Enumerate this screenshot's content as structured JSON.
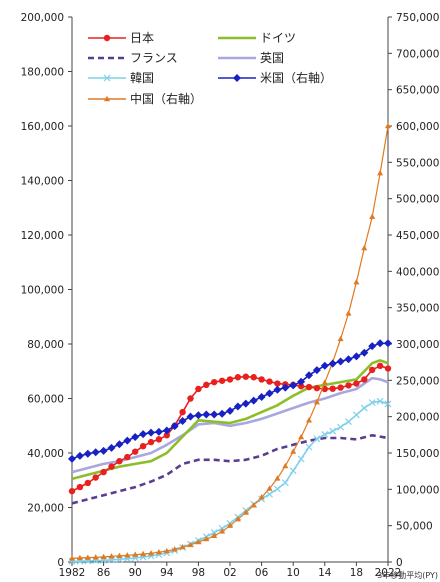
{
  "chart_data": {
    "type": "line",
    "note": "3年移動平均(PY)",
    "x_ticks": [
      "1982",
      "86",
      "90",
      "94",
      "98",
      "02",
      "06",
      "10",
      "14",
      "18",
      "2022"
    ],
    "x_range": [
      1982,
      2022
    ],
    "y_left": {
      "range": [
        0,
        200000
      ],
      "step": 20000,
      "ticks": [
        "0",
        "20,000",
        "40,000",
        "60,000",
        "80,000",
        "100,000",
        "120,000",
        "140,000",
        "160,000",
        "180,000",
        "200,000"
      ]
    },
    "y_right": {
      "range": [
        0,
        750000
      ],
      "step": 50000,
      "ticks": [
        "0",
        "50,000",
        "100,000",
        "150,000",
        "200,000",
        "250,000",
        "300,000",
        "350,000",
        "400,000",
        "450,000",
        "500,000",
        "550,000",
        "600,000",
        "650,000",
        "700,000",
        "750,000"
      ]
    },
    "legend_placement": "top-left",
    "grid": false,
    "series": [
      {
        "name": "日本",
        "color": "#e8201e",
        "marker": "circle",
        "axis": "left",
        "x": [
          1982,
          1983,
          1984,
          1985,
          1986,
          1987,
          1988,
          1989,
          1990,
          1991,
          1992,
          1993,
          1994,
          1995,
          1996,
          1997,
          1998,
          1999,
          2000,
          2001,
          2002,
          2003,
          2004,
          2005,
          2006,
          2007,
          2008,
          2009,
          2010,
          2011,
          2012,
          2013,
          2014,
          2015,
          2016,
          2017,
          2018,
          2019,
          2020,
          2021,
          2022
        ],
        "y": [
          26000,
          27500,
          29000,
          31000,
          33000,
          35000,
          37000,
          38500,
          40500,
          42500,
          44000,
          45000,
          46500,
          50000,
          55000,
          60000,
          63500,
          65000,
          66000,
          66500,
          67000,
          67800,
          68000,
          67800,
          67000,
          66200,
          65500,
          65200,
          65000,
          64500,
          64200,
          63800,
          63500,
          63600,
          64000,
          64800,
          65500,
          67000,
          70500,
          72000,
          71000
        ]
      },
      {
        "name": "ドイツ",
        "color": "#8cbe2a",
        "marker": "none",
        "axis": "left",
        "x": [
          1982,
          1984,
          1986,
          1988,
          1990,
          1992,
          1994,
          1996,
          1998,
          2000,
          2002,
          2004,
          2006,
          2008,
          2010,
          2012,
          2014,
          2016,
          2018,
          2020,
          2021,
          2022
        ],
        "y": [
          30500,
          32000,
          33500,
          35000,
          36000,
          37000,
          40000,
          46000,
          52000,
          51500,
          51000,
          52500,
          55000,
          57500,
          61000,
          64000,
          65000,
          66000,
          67000,
          73000,
          74000,
          73000
        ]
      },
      {
        "name": "フランス",
        "color": "#5b3d90",
        "marker": "none",
        "dashed": true,
        "axis": "left",
        "x": [
          1982,
          1984,
          1986,
          1988,
          1990,
          1992,
          1994,
          1996,
          1998,
          2000,
          2002,
          2004,
          2006,
          2008,
          2010,
          2012,
          2014,
          2016,
          2018,
          2020,
          2021,
          2022
        ],
        "y": [
          21500,
          23000,
          24500,
          26000,
          27500,
          29500,
          32000,
          36000,
          37500,
          37500,
          37000,
          37500,
          39000,
          41500,
          43000,
          44500,
          45500,
          45500,
          45000,
          46500,
          46000,
          45500
        ]
      },
      {
        "name": "英国",
        "color": "#a9a7de",
        "marker": "none",
        "axis": "left",
        "x": [
          1982,
          1984,
          1986,
          1988,
          1990,
          1992,
          1994,
          1996,
          1998,
          2000,
          2002,
          2004,
          2006,
          2008,
          2010,
          2012,
          2014,
          2016,
          2018,
          2020,
          2021,
          2022
        ],
        "y": [
          33000,
          34500,
          36000,
          37000,
          38500,
          40000,
          43000,
          46500,
          50500,
          51000,
          50000,
          51000,
          52500,
          54500,
          56500,
          58500,
          60000,
          62000,
          63500,
          67500,
          67000,
          66000
        ]
      },
      {
        "name": "韓国",
        "color": "#7fd0ea",
        "marker": "cross",
        "axis": "left",
        "x": [
          1982,
          1983,
          1984,
          1985,
          1986,
          1987,
          1988,
          1989,
          1990,
          1991,
          1992,
          1993,
          1994,
          1995,
          1996,
          1997,
          1998,
          1999,
          2000,
          2001,
          2002,
          2003,
          2004,
          2005,
          2006,
          2007,
          2008,
          2009,
          2010,
          2011,
          2012,
          2013,
          2014,
          2015,
          2016,
          2017,
          2018,
          2019,
          2020,
          2021,
          2022
        ],
        "y": [
          200,
          300,
          400,
          500,
          600,
          800,
          1000,
          1200,
          1500,
          1800,
          2200,
          2700,
          3300,
          4200,
          5300,
          6600,
          7900,
          9300,
          10800,
          12300,
          14200,
          16500,
          18900,
          21200,
          23100,
          24900,
          26800,
          29100,
          33500,
          37800,
          42200,
          45200,
          46800,
          48000,
          49500,
          51500,
          54000,
          56500,
          58500,
          59000,
          58000
        ]
      },
      {
        "name": "米国（右軸）",
        "color": "#1822c4",
        "marker": "diamond",
        "axis": "right",
        "x": [
          1982,
          1983,
          1984,
          1985,
          1986,
          1987,
          1988,
          1989,
          1990,
          1991,
          1992,
          1993,
          1994,
          1995,
          1996,
          1997,
          1998,
          1999,
          2000,
          2001,
          2002,
          2003,
          2004,
          2005,
          2006,
          2007,
          2008,
          2009,
          2010,
          2011,
          2012,
          2013,
          2014,
          2015,
          2016,
          2017,
          2018,
          2019,
          2020,
          2021,
          2022
        ],
        "y": [
          142000,
          146000,
          149000,
          151000,
          153000,
          157000,
          162000,
          167000,
          172000,
          176000,
          178000,
          179000,
          181000,
          187000,
          194000,
          200000,
          202000,
          203000,
          203000,
          204000,
          208000,
          214000,
          218000,
          222000,
          227000,
          232000,
          237000,
          240000,
          243000,
          248000,
          257000,
          264000,
          270000,
          273000,
          276000,
          279000,
          283000,
          288000,
          297000,
          301000,
          301000
        ]
      },
      {
        "name": "中国（右軸）",
        "color": "#e07a22",
        "marker": "triangle",
        "axis": "right",
        "x": [
          1982,
          1983,
          1984,
          1985,
          1986,
          1987,
          1988,
          1989,
          1990,
          1991,
          1992,
          1993,
          1994,
          1995,
          1996,
          1997,
          1998,
          1999,
          2000,
          2001,
          2002,
          2003,
          2004,
          2005,
          2006,
          2007,
          2008,
          2009,
          2010,
          2011,
          2012,
          2013,
          2014,
          2015,
          2016,
          2017,
          2018,
          2019,
          2020,
          2021,
          2022
        ],
        "y": [
          5000,
          5600,
          6000,
          6500,
          7000,
          7800,
          8500,
          9200,
          10000,
          11000,
          12000,
          13500,
          15000,
          17500,
          20500,
          23500,
          27500,
          31500,
          36000,
          42000,
          50000,
          59000,
          68000,
          78000,
          89000,
          101000,
          115000,
          132000,
          152000,
          172000,
          195000,
          220000,
          247000,
          275000,
          307000,
          342000,
          385000,
          432000,
          475000,
          535000,
          600000
        ]
      }
    ]
  }
}
